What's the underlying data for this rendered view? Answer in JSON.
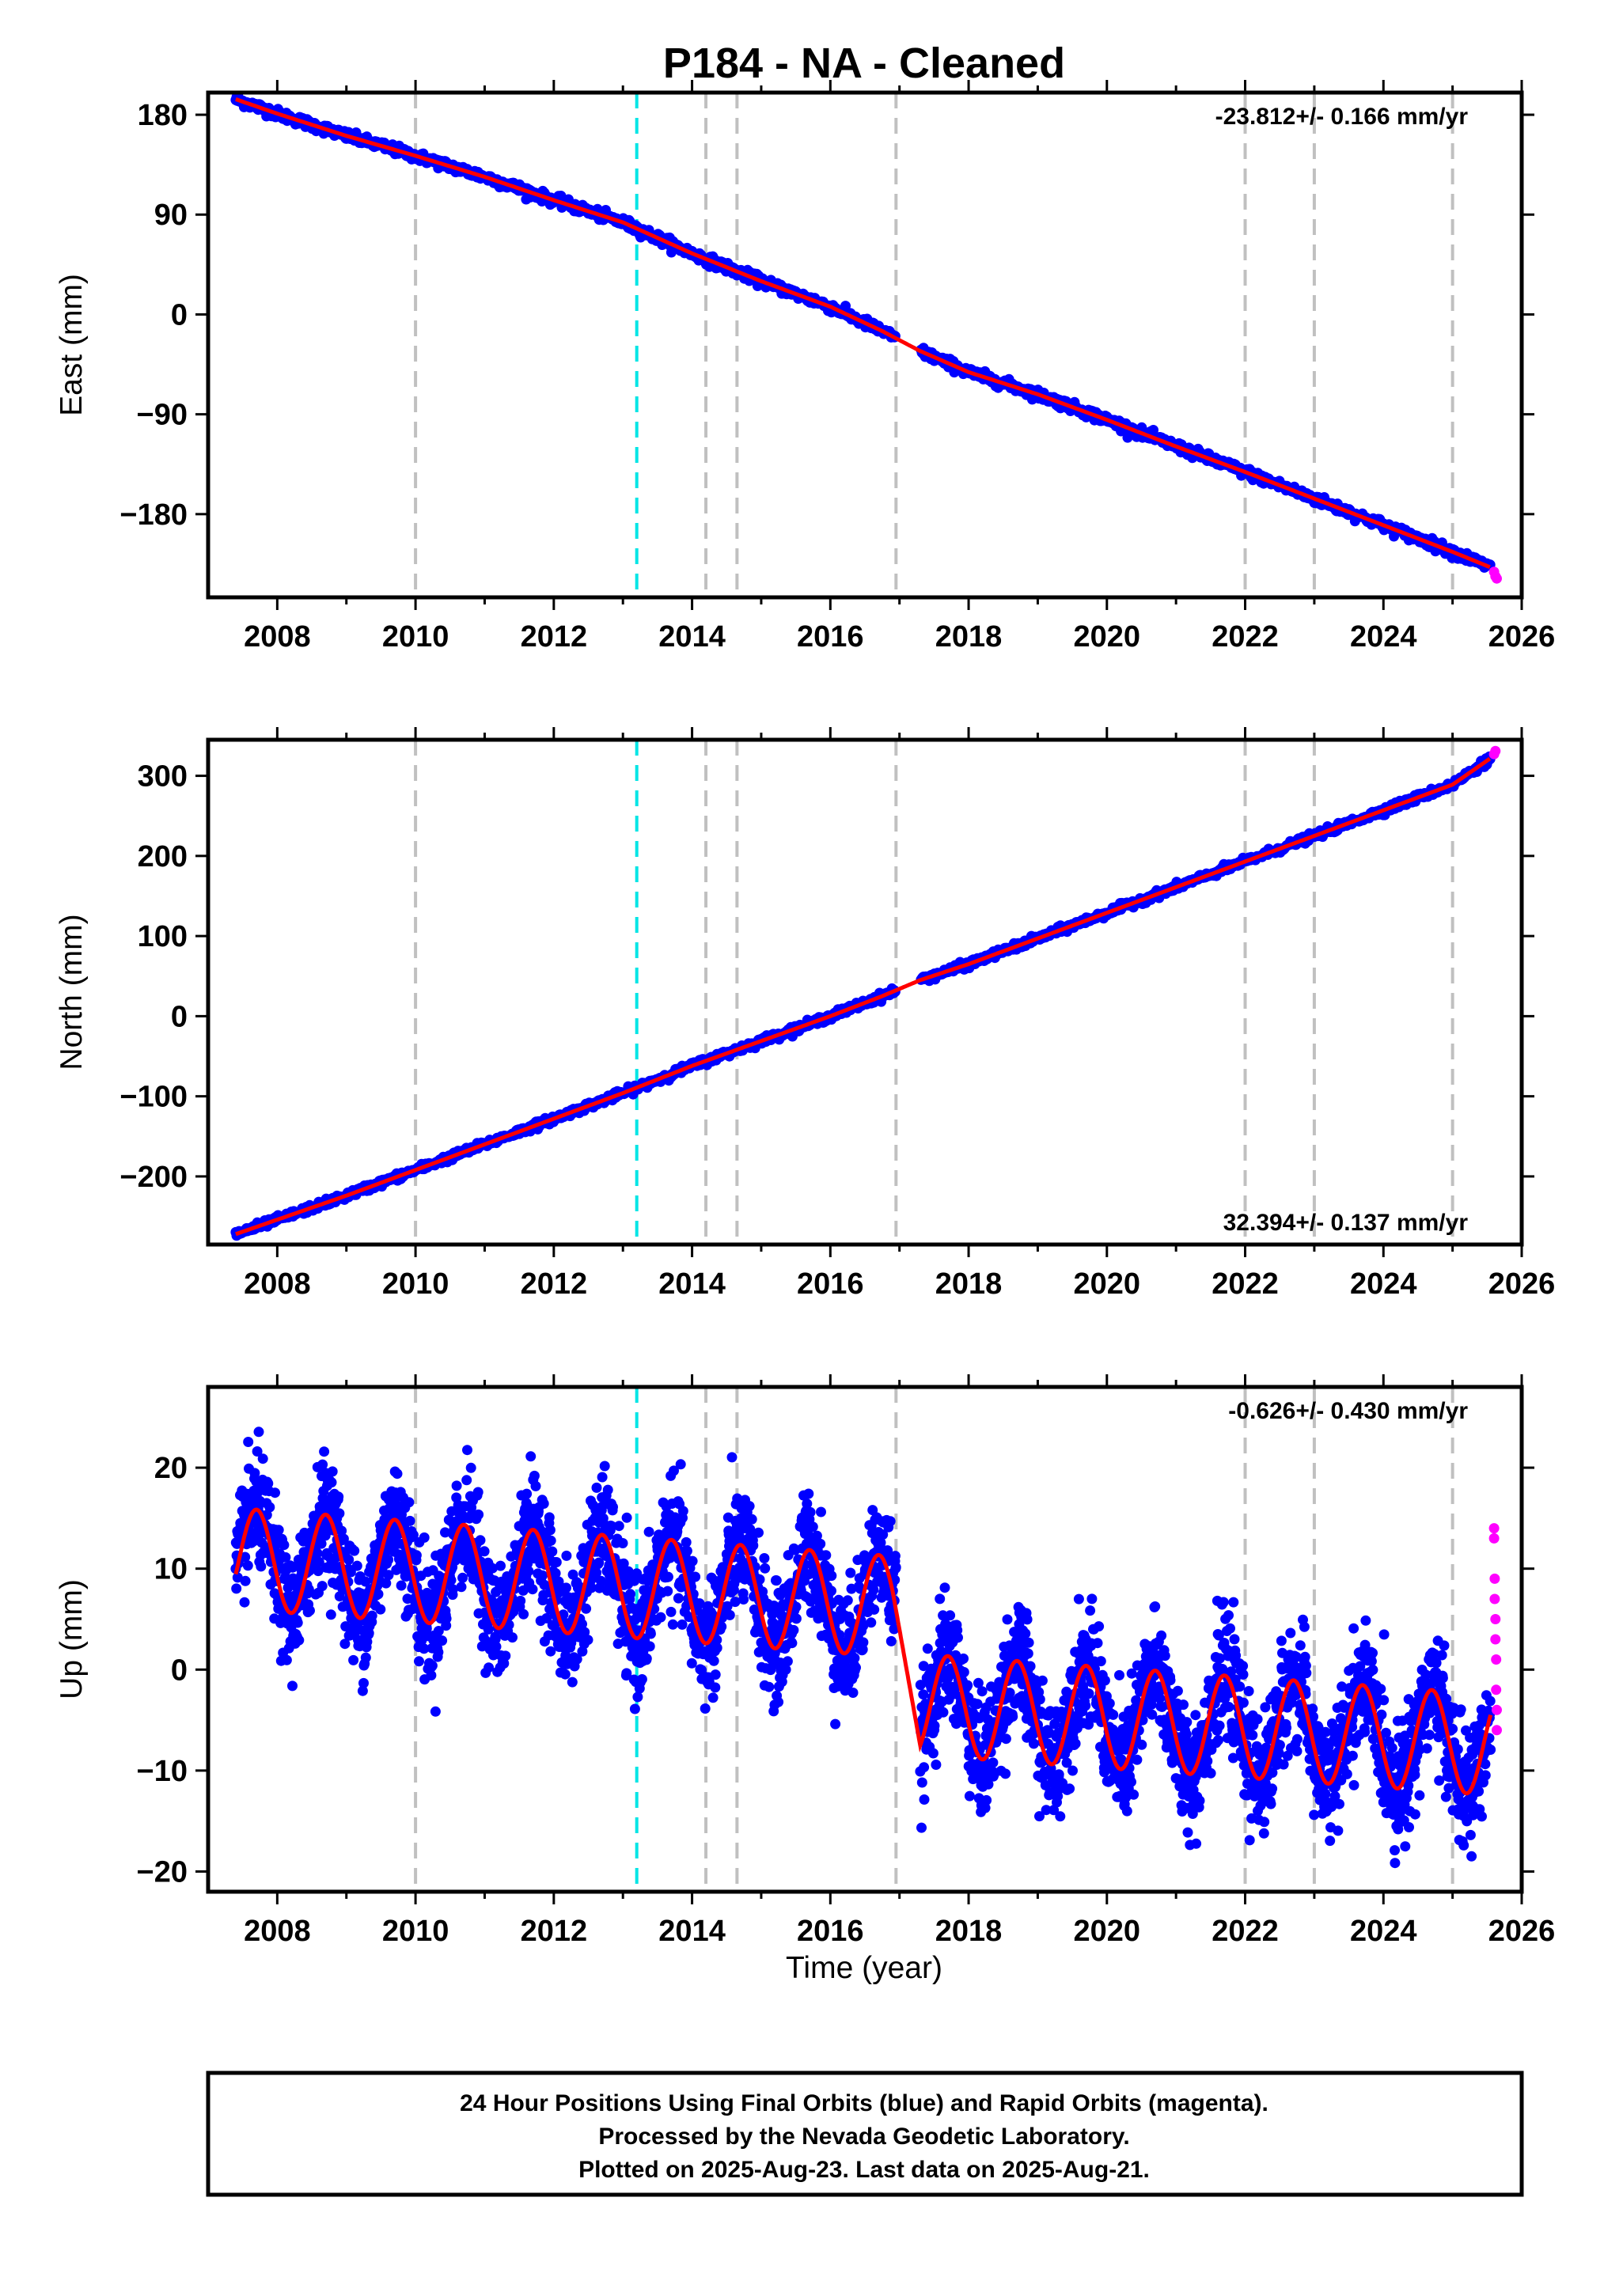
{
  "chart_data": {
    "title": "P184  - NA - Cleaned",
    "xlabel": "Time (year)",
    "xlim": [
      2007.0,
      2026.0
    ],
    "x_ticks": [
      2008,
      2010,
      2012,
      2014,
      2016,
      2018,
      2020,
      2022,
      2024,
      2026
    ],
    "event_lines": {
      "cyan": [
        2013.2
      ],
      "gray": [
        2010.0,
        2014.2,
        2014.65,
        2016.95,
        2022.0,
        2023.0,
        2025.0
      ]
    },
    "colors": {
      "final_orbits": "#0000ff",
      "rapid_orbits": "#ff00ff",
      "model": "#ff0000",
      "gray_lines": "#c0c0c0",
      "cyan_line": "#00e5e5"
    },
    "panels": [
      {
        "type": "scatter",
        "ylabel": "East (mm)",
        "ylim": [
          -255,
          200
        ],
        "y_ticks": [
          180,
          90,
          0,
          -90,
          -180
        ],
        "y_tick_labels": [
          "180",
          "90",
          "0",
          "−90",
          "−180"
        ],
        "rate_text": "-23.812+/- 0.166 mm/yr",
        "rate_pos": "top-right",
        "series": [
          {
            "kind": "final",
            "x": [
              2007.4,
              2008.0,
              2009.0,
              2010.0,
              2011.0,
              2012.0,
              2013.0,
              2014.0,
              2015.0,
              2016.0,
              2016.75,
              2017.3,
              2018.0,
              2019.0,
              2020.0,
              2021.0,
              2022.0,
              2023.0,
              2024.0,
              2025.0,
              2025.55
            ],
            "y": [
              194,
              181,
              161,
              143,
              124,
              103,
              83,
              55,
              30,
              7,
              -15,
              -33,
              -52,
              -72,
              -95,
              -119,
              -142,
              -166,
              -190,
              -214,
              -228
            ]
          },
          {
            "kind": "rapid",
            "x": [
              2025.6,
              2025.62,
              2025.64
            ],
            "y": [
              -232,
              -236,
              -238
            ]
          }
        ]
      },
      {
        "type": "scatter",
        "ylabel": "North (mm)",
        "ylim": [
          -285,
          345
        ],
        "y_ticks": [
          300,
          200,
          100,
          0,
          -100,
          -200
        ],
        "y_tick_labels": [
          "300",
          "200",
          "100",
          "0",
          "−100",
          "−200"
        ],
        "rate_text": "32.394+/- 0.137 mm/yr",
        "rate_pos": "bottom-right",
        "series": [
          {
            "kind": "final",
            "x": [
              2007.4,
              2008.0,
              2009.0,
              2010.0,
              2011.0,
              2012.0,
              2013.0,
              2014.0,
              2015.0,
              2016.0,
              2016.75,
              2017.3,
              2018.0,
              2019.0,
              2020.0,
              2021.0,
              2022.0,
              2023.0,
              2024.0,
              2025.0,
              2025.55
            ],
            "y": [
              -272,
              -254,
              -224,
              -192,
              -160,
              -128,
              -96,
              -62,
              -31,
              0,
              25,
              45,
              65,
              97,
              129,
              161,
              193,
              225,
              257,
              289,
              322
            ]
          },
          {
            "kind": "rapid",
            "x": [
              2025.6,
              2025.62
            ],
            "y": [
              327,
              331
            ]
          }
        ]
      },
      {
        "type": "scatter",
        "ylabel": "Up (mm)",
        "ylim": [
          -22,
          28
        ],
        "y_ticks": [
          20,
          10,
          0,
          -10,
          -20
        ],
        "y_tick_labels": [
          "20",
          "10",
          "0",
          "−10",
          "−20"
        ],
        "rate_text": "-0.626+/- 0.430 mm/yr",
        "rate_pos": "top-right",
        "model": {
          "annual_amplitude_mm": 5.0,
          "peak_phase_year_fraction": 0.7,
          "offset_before_2016.95_mm": 11.0,
          "slope_before_mm_per_yr": -0.5,
          "offset_after_2016.95_mm": -3.3,
          "slope_after_mm_per_yr": -0.48
        },
        "series": [
          {
            "kind": "final",
            "x_range": [
              2007.4,
              2025.55
            ],
            "gap": [
              2016.95,
              2017.3
            ],
            "scatter_sd_mm": 2.8
          },
          {
            "kind": "rapid",
            "x": [
              2025.6,
              2025.6,
              2025.61,
              2025.61,
              2025.62,
              2025.62,
              2025.63,
              2025.63,
              2025.64,
              2025.64
            ],
            "y": [
              14,
              13,
              9,
              7,
              5,
              3,
              1,
              -2,
              -4,
              -6
            ]
          }
        ]
      }
    ],
    "footer": [
      "24 Hour Positions Using Final Orbits (blue) and Rapid Orbits (magenta).",
      "Processed by the Nevada Geodetic Laboratory.",
      "Plotted on 2025-Aug-23. Last data on 2025-Aug-21."
    ]
  }
}
